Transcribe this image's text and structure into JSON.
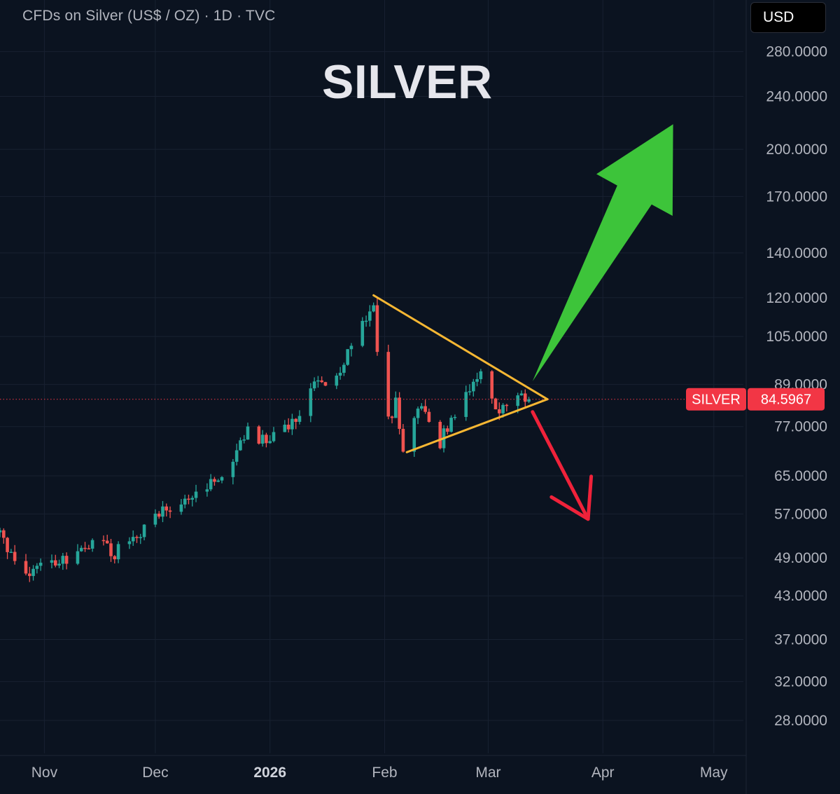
{
  "header": {
    "title": "CFDs on Silver (US$ / OZ) · 1D · TVC",
    "currency_label": "USD"
  },
  "overlay": {
    "title": "SILVER"
  },
  "price_badge": {
    "symbol": "SILVER",
    "price": "84.5967"
  },
  "colors": {
    "background": "#0b1320",
    "up": "#26a69a",
    "down": "#ef5350",
    "triangle": "#f7b733",
    "arrow_up": "#3dc43a",
    "arrow_down": "#f0223a",
    "badge": "#f23645"
  },
  "chart_data": {
    "type": "candlestick",
    "title": "CFDs on Silver (US$ / OZ) · 1D · TVC",
    "y_scale": "log",
    "ylim": [
      25,
      300
    ],
    "y_ticks": [
      280,
      240,
      200,
      170,
      140,
      120,
      105,
      89,
      77,
      65,
      57,
      49,
      43,
      37,
      32,
      28
    ],
    "y_tick_labels": [
      "280.0000",
      "240.0000",
      "200.0000",
      "170.0000",
      "140.0000",
      "120.0000",
      "105.0000",
      "89.0000",
      "77.0000",
      "65.0000",
      "57.0000",
      "49.0000",
      "43.0000",
      "37.0000",
      "32.0000",
      "28.0000"
    ],
    "x_range": [
      "2025-10-20",
      "2026-05-09"
    ],
    "x_ticks": [
      {
        "date": "2025-11-01",
        "label": "Nov",
        "bold": false
      },
      {
        "date": "2025-12-01",
        "label": "Dec",
        "bold": false
      },
      {
        "date": "2026-01-01",
        "label": "2026",
        "bold": true
      },
      {
        "date": "2026-02-01",
        "label": "Feb",
        "bold": false
      },
      {
        "date": "2026-03-01",
        "label": "Mar",
        "bold": false
      },
      {
        "date": "2026-04-01",
        "label": "Apr",
        "bold": false
      },
      {
        "date": "2026-05-01",
        "label": "May",
        "bold": false
      }
    ],
    "last_price": 84.5967,
    "price_anchors": [
      [
        "2025-10-20",
        53.5
      ],
      [
        "2025-10-23",
        49.0
      ],
      [
        "2025-10-28",
        47.0
      ],
      [
        "2025-11-05",
        48.2
      ],
      [
        "2025-11-12",
        50.5
      ],
      [
        "2025-11-15",
        52.5
      ],
      [
        "2025-11-20",
        50.0
      ],
      [
        "2025-11-26",
        52.0
      ],
      [
        "2025-12-01",
        56.5
      ],
      [
        "2025-12-08",
        58.5
      ],
      [
        "2025-12-13",
        62.0
      ],
      [
        "2025-12-20",
        66.5
      ],
      [
        "2025-12-26",
        76.5
      ],
      [
        "2025-12-29",
        73.0
      ],
      [
        "2026-01-03",
        76.0
      ],
      [
        "2026-01-06",
        78.0
      ],
      [
        "2026-01-09",
        81.0
      ],
      [
        "2026-01-13",
        88.0
      ],
      [
        "2026-01-20",
        94.0
      ],
      [
        "2026-01-26",
        110.0
      ],
      [
        "2026-01-29",
        116.0
      ],
      [
        "2026-01-31",
        80.0
      ],
      [
        "2026-02-02",
        78.0
      ],
      [
        "2026-02-04",
        84.0
      ],
      [
        "2026-02-06",
        72.0
      ],
      [
        "2026-02-08",
        78.0
      ],
      [
        "2026-02-12",
        82.0
      ],
      [
        "2026-02-16",
        73.0
      ],
      [
        "2026-02-19",
        78.0
      ],
      [
        "2026-02-22",
        87.0
      ],
      [
        "2026-02-26",
        90.0
      ],
      [
        "2026-03-01",
        93.0
      ],
      [
        "2026-03-03",
        80.0
      ],
      [
        "2026-03-07",
        83.0
      ],
      [
        "2026-03-10",
        87.0
      ],
      [
        "2026-03-12",
        84.6
      ]
    ],
    "triangle": {
      "upper_line": [
        [
          "2026-01-29",
          121.0
        ],
        [
          "2026-03-17",
          84.6
        ]
      ],
      "lower_line": [
        [
          "2026-02-07",
          70.5
        ],
        [
          "2026-03-17",
          84.6
        ]
      ]
    },
    "annotations": [
      {
        "type": "arrow",
        "direction": "up",
        "from": [
          "2026-03-13",
          90.0
        ],
        "to": [
          "2026-04-20",
          218.0
        ]
      },
      {
        "type": "arrow",
        "direction": "down",
        "from": [
          "2026-03-13",
          81.0
        ],
        "to": [
          "2026-03-28",
          56.0
        ]
      }
    ]
  }
}
